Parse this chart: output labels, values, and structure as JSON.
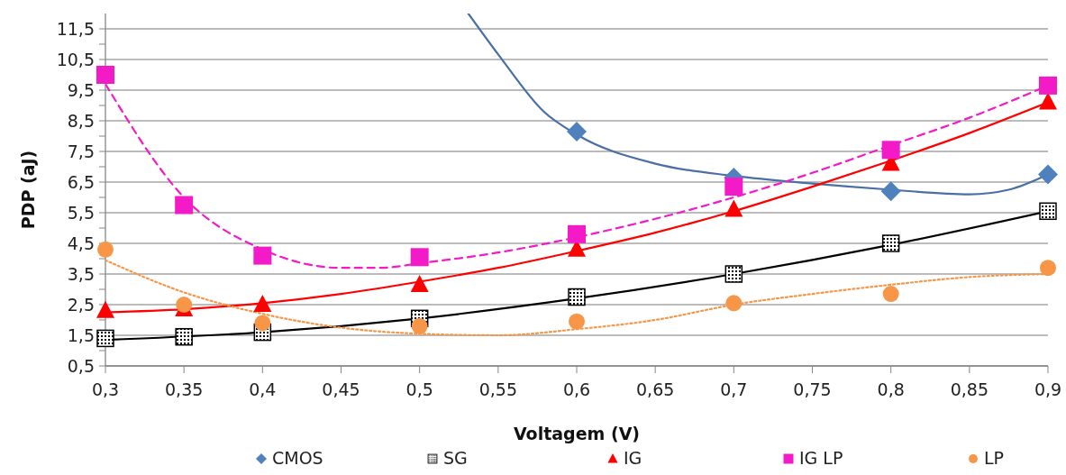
{
  "chart_data": {
    "type": "scatter",
    "xlabel": "Voltagem (V)",
    "ylabel": "PDP (aJ)",
    "x": [
      0.3,
      0.35,
      0.4,
      0.5,
      0.6,
      0.7,
      0.8,
      0.9
    ],
    "xlim": [
      0.3,
      0.9
    ],
    "xticks": [
      {
        "value": 0.3,
        "label": "0,3"
      },
      {
        "value": 0.35,
        "label": "0,35"
      },
      {
        "value": 0.4,
        "label": "0,4"
      },
      {
        "value": 0.45,
        "label": "0,45"
      },
      {
        "value": 0.5,
        "label": "0,5"
      },
      {
        "value": 0.55,
        "label": "0,55"
      },
      {
        "value": 0.6,
        "label": "0,6"
      },
      {
        "value": 0.65,
        "label": "0,65"
      },
      {
        "value": 0.7,
        "label": "0,7"
      },
      {
        "value": 0.75,
        "label": "0,75"
      },
      {
        "value": 0.8,
        "label": "0,8"
      },
      {
        "value": 0.85,
        "label": "0,85"
      },
      {
        "value": 0.9,
        "label": "0,9"
      }
    ],
    "ylim": [
      0.5,
      12
    ],
    "yticks": [
      {
        "value": 0.5,
        "label": "0,5"
      },
      {
        "value": 1,
        "label": null
      },
      {
        "value": 1.5,
        "label": "1,5"
      },
      {
        "value": 2,
        "label": null
      },
      {
        "value": 2.5,
        "label": "2,5"
      },
      {
        "value": 3,
        "label": null
      },
      {
        "value": 3.5,
        "label": "3,5"
      },
      {
        "value": 4,
        "label": null
      },
      {
        "value": 4.5,
        "label": "4,5"
      },
      {
        "value": 5,
        "label": null
      },
      {
        "value": 5.5,
        "label": "5,5"
      },
      {
        "value": 6,
        "label": null
      },
      {
        "value": 6.5,
        "label": "6,5"
      },
      {
        "value": 7,
        "label": null
      },
      {
        "value": 7.5,
        "label": "7,5"
      },
      {
        "value": 8,
        "label": null
      },
      {
        "value": 8.5,
        "label": "8,5"
      },
      {
        "value": 9,
        "label": null
      },
      {
        "value": 9.5,
        "label": "9,5"
      },
      {
        "value": 10,
        "label": null
      },
      {
        "value": 10.5,
        "label": "10,5"
      },
      {
        "value": 11,
        "label": null
      },
      {
        "value": 11.5,
        "label": "11,5"
      }
    ],
    "grid": "y",
    "legend": "bottom",
    "series": [
      {
        "name": "CMOS",
        "marker": "diamond",
        "color": "#4f81bd",
        "values": [
          null,
          null,
          null,
          null,
          8.15,
          6.65,
          6.2,
          6.75
        ]
      },
      {
        "name": "SG",
        "marker": "square",
        "color": "#000000",
        "values": [
          1.4,
          1.45,
          1.6,
          2.05,
          2.75,
          3.5,
          4.5,
          5.55
        ]
      },
      {
        "name": "IG",
        "marker": "triangle",
        "color": "#ff0000",
        "values": [
          2.3,
          2.35,
          2.5,
          3.15,
          4.3,
          5.6,
          7.1,
          9.1
        ]
      },
      {
        "name": "IG LP",
        "marker": "square",
        "color": "#f31ac8",
        "values": [
          10.0,
          5.75,
          4.1,
          4.05,
          4.8,
          6.35,
          7.55,
          9.65
        ]
      },
      {
        "name": "LP",
        "marker": "circle",
        "color": "#f79646",
        "values": [
          4.3,
          2.5,
          1.9,
          1.8,
          1.95,
          2.55,
          2.85,
          3.7
        ]
      },
      {
        "type": "line",
        "line_style": "solid",
        "color": "#4a6fa5",
        "x": [
          0.531,
          0.551,
          0.579,
          0.6,
          0.65,
          0.7,
          0.75,
          0.8,
          0.85,
          0.875,
          0.9
        ],
        "values": [
          12.0,
          10.6,
          8.8,
          8.05,
          7.1,
          6.7,
          6.45,
          6.25,
          6.1,
          6.25,
          6.75
        ]
      },
      {
        "type": "line",
        "line_style": "solid",
        "color": "#000000",
        "x": [
          0.3,
          0.4,
          0.5,
          0.6,
          0.7,
          0.8,
          0.9
        ],
        "values": [
          1.35,
          1.6,
          2.05,
          2.7,
          3.5,
          4.45,
          5.55
        ]
      },
      {
        "type": "line",
        "line_style": "solid",
        "color": "#ff0000",
        "x": [
          0.3,
          0.35,
          0.4,
          0.45,
          0.5,
          0.55,
          0.6,
          0.65,
          0.7,
          0.75,
          0.8,
          0.85,
          0.9
        ],
        "values": [
          2.25,
          2.35,
          2.55,
          2.85,
          3.25,
          3.7,
          4.25,
          4.85,
          5.55,
          6.35,
          7.2,
          8.1,
          9.1
        ]
      },
      {
        "type": "line",
        "line_style": "dashed",
        "color": "#f31ac8",
        "x": [
          0.3,
          0.35,
          0.4,
          0.45,
          0.475,
          0.5,
          0.55,
          0.6,
          0.65,
          0.7,
          0.75,
          0.8,
          0.85,
          0.9
        ],
        "values": [
          9.7,
          6.0,
          4.3,
          3.7,
          3.7,
          3.85,
          4.2,
          4.7,
          5.3,
          6.0,
          6.8,
          7.7,
          8.6,
          9.65
        ]
      },
      {
        "type": "line",
        "line_style": "dotted",
        "color": "#f79646",
        "x": [
          0.3,
          0.35,
          0.4,
          0.45,
          0.5,
          0.55,
          0.6,
          0.65,
          0.7,
          0.75,
          0.8,
          0.85,
          0.9
        ],
        "values": [
          3.95,
          2.9,
          2.2,
          1.75,
          1.55,
          1.5,
          1.7,
          2.0,
          2.5,
          2.85,
          3.15,
          3.4,
          3.5
        ]
      }
    ]
  }
}
